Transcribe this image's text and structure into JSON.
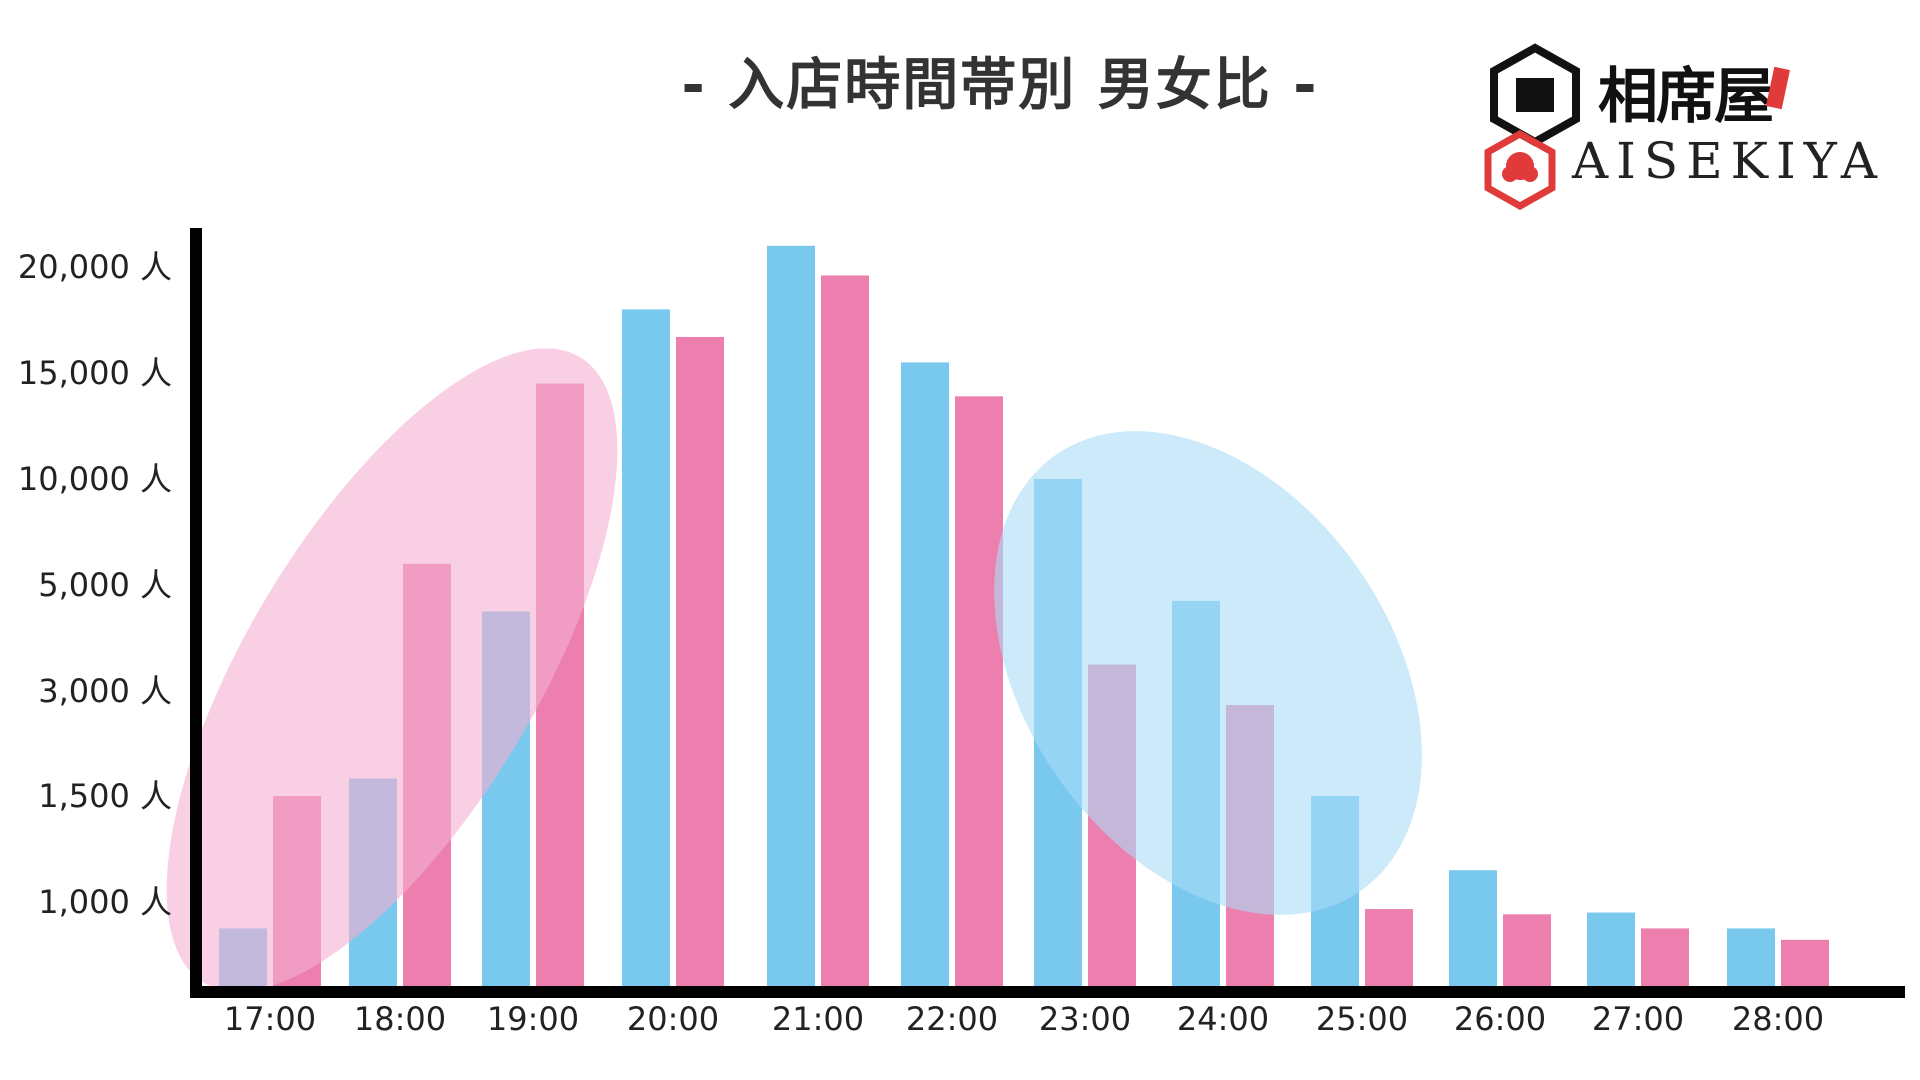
{
  "title": "- 入店時間帯別 男女比 -",
  "logo": {
    "jp_text": "相席屋",
    "en_text": "AISEKIYA",
    "brand_color": "#e03a3a"
  },
  "chart_data": {
    "type": "bar",
    "title": "- 入店時間帯別 男女比 -",
    "xlabel": "",
    "ylabel": "",
    "categories": [
      "17:00",
      "18:00",
      "19:00",
      "20:00",
      "21:00",
      "22:00",
      "23:00",
      "24:00",
      "25:00",
      "26:00",
      "27:00",
      "28:00"
    ],
    "y_tick_labels": [
      "1,000 人",
      "1,500 人",
      "3,000 人",
      "5,000 人",
      "10,000 人",
      "15,000 人",
      "20,000 人"
    ],
    "y_tick_values": [
      1000,
      1500,
      3000,
      5000,
      10000,
      15000,
      20000
    ],
    "series": [
      {
        "color": "#79c9ef",
        "values": [
          700,
          1750,
          4500,
          18000,
          21000,
          15500,
          10000,
          4700,
          1500,
          1150,
          880,
          700
        ]
      },
      {
        "color": "#ec7fae",
        "values": [
          1500,
          6000,
          14500,
          16700,
          19600,
          13900,
          3500,
          2800,
          920,
          860,
          700,
          570
        ]
      }
    ],
    "highlights": [
      {
        "color": "#f4afd0",
        "covers": [
          "17:00",
          "18:00",
          "19:00"
        ]
      },
      {
        "color": "#aadcf6",
        "covers": [
          "23:00",
          "24:00",
          "25:00"
        ]
      }
    ],
    "grid": false,
    "legend": "none"
  }
}
